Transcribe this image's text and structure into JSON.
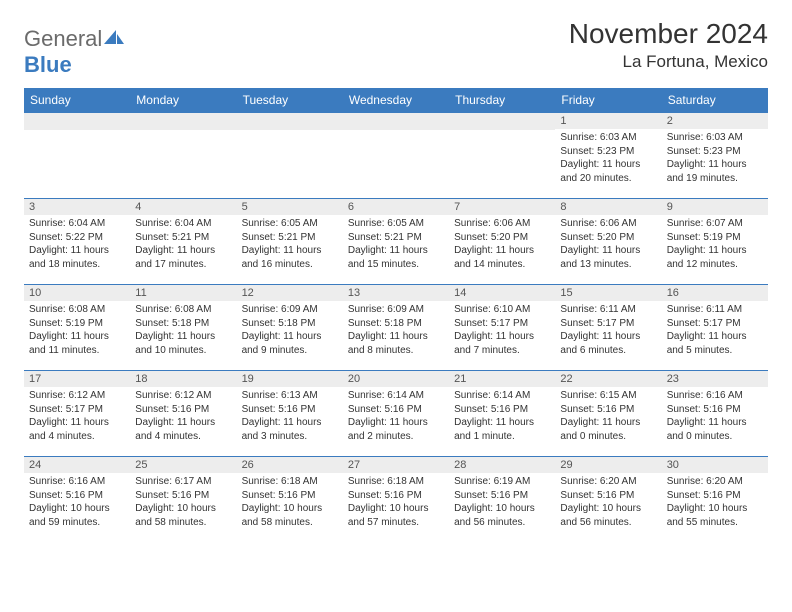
{
  "brand": {
    "part1": "General",
    "part2": "Blue"
  },
  "title": "November 2024",
  "location": "La Fortuna, Mexico",
  "colors": {
    "header_bg": "#3b7bbf",
    "header_text": "#ffffff",
    "daynum_bg": "#ededed",
    "text": "#333333",
    "logo_gray": "#6b6b6b",
    "logo_blue": "#3b7bbf"
  },
  "weekdays": [
    "Sunday",
    "Monday",
    "Tuesday",
    "Wednesday",
    "Thursday",
    "Friday",
    "Saturday"
  ],
  "weeks": [
    [
      null,
      null,
      null,
      null,
      null,
      {
        "n": "1",
        "sr": "Sunrise: 6:03 AM",
        "ss": "Sunset: 5:23 PM",
        "dl": "Daylight: 11 hours and 20 minutes."
      },
      {
        "n": "2",
        "sr": "Sunrise: 6:03 AM",
        "ss": "Sunset: 5:23 PM",
        "dl": "Daylight: 11 hours and 19 minutes."
      }
    ],
    [
      {
        "n": "3",
        "sr": "Sunrise: 6:04 AM",
        "ss": "Sunset: 5:22 PM",
        "dl": "Daylight: 11 hours and 18 minutes."
      },
      {
        "n": "4",
        "sr": "Sunrise: 6:04 AM",
        "ss": "Sunset: 5:21 PM",
        "dl": "Daylight: 11 hours and 17 minutes."
      },
      {
        "n": "5",
        "sr": "Sunrise: 6:05 AM",
        "ss": "Sunset: 5:21 PM",
        "dl": "Daylight: 11 hours and 16 minutes."
      },
      {
        "n": "6",
        "sr": "Sunrise: 6:05 AM",
        "ss": "Sunset: 5:21 PM",
        "dl": "Daylight: 11 hours and 15 minutes."
      },
      {
        "n": "7",
        "sr": "Sunrise: 6:06 AM",
        "ss": "Sunset: 5:20 PM",
        "dl": "Daylight: 11 hours and 14 minutes."
      },
      {
        "n": "8",
        "sr": "Sunrise: 6:06 AM",
        "ss": "Sunset: 5:20 PM",
        "dl": "Daylight: 11 hours and 13 minutes."
      },
      {
        "n": "9",
        "sr": "Sunrise: 6:07 AM",
        "ss": "Sunset: 5:19 PM",
        "dl": "Daylight: 11 hours and 12 minutes."
      }
    ],
    [
      {
        "n": "10",
        "sr": "Sunrise: 6:08 AM",
        "ss": "Sunset: 5:19 PM",
        "dl": "Daylight: 11 hours and 11 minutes."
      },
      {
        "n": "11",
        "sr": "Sunrise: 6:08 AM",
        "ss": "Sunset: 5:18 PM",
        "dl": "Daylight: 11 hours and 10 minutes."
      },
      {
        "n": "12",
        "sr": "Sunrise: 6:09 AM",
        "ss": "Sunset: 5:18 PM",
        "dl": "Daylight: 11 hours and 9 minutes."
      },
      {
        "n": "13",
        "sr": "Sunrise: 6:09 AM",
        "ss": "Sunset: 5:18 PM",
        "dl": "Daylight: 11 hours and 8 minutes."
      },
      {
        "n": "14",
        "sr": "Sunrise: 6:10 AM",
        "ss": "Sunset: 5:17 PM",
        "dl": "Daylight: 11 hours and 7 minutes."
      },
      {
        "n": "15",
        "sr": "Sunrise: 6:11 AM",
        "ss": "Sunset: 5:17 PM",
        "dl": "Daylight: 11 hours and 6 minutes."
      },
      {
        "n": "16",
        "sr": "Sunrise: 6:11 AM",
        "ss": "Sunset: 5:17 PM",
        "dl": "Daylight: 11 hours and 5 minutes."
      }
    ],
    [
      {
        "n": "17",
        "sr": "Sunrise: 6:12 AM",
        "ss": "Sunset: 5:17 PM",
        "dl": "Daylight: 11 hours and 4 minutes."
      },
      {
        "n": "18",
        "sr": "Sunrise: 6:12 AM",
        "ss": "Sunset: 5:16 PM",
        "dl": "Daylight: 11 hours and 4 minutes."
      },
      {
        "n": "19",
        "sr": "Sunrise: 6:13 AM",
        "ss": "Sunset: 5:16 PM",
        "dl": "Daylight: 11 hours and 3 minutes."
      },
      {
        "n": "20",
        "sr": "Sunrise: 6:14 AM",
        "ss": "Sunset: 5:16 PM",
        "dl": "Daylight: 11 hours and 2 minutes."
      },
      {
        "n": "21",
        "sr": "Sunrise: 6:14 AM",
        "ss": "Sunset: 5:16 PM",
        "dl": "Daylight: 11 hours and 1 minute."
      },
      {
        "n": "22",
        "sr": "Sunrise: 6:15 AM",
        "ss": "Sunset: 5:16 PM",
        "dl": "Daylight: 11 hours and 0 minutes."
      },
      {
        "n": "23",
        "sr": "Sunrise: 6:16 AM",
        "ss": "Sunset: 5:16 PM",
        "dl": "Daylight: 11 hours and 0 minutes."
      }
    ],
    [
      {
        "n": "24",
        "sr": "Sunrise: 6:16 AM",
        "ss": "Sunset: 5:16 PM",
        "dl": "Daylight: 10 hours and 59 minutes."
      },
      {
        "n": "25",
        "sr": "Sunrise: 6:17 AM",
        "ss": "Sunset: 5:16 PM",
        "dl": "Daylight: 10 hours and 58 minutes."
      },
      {
        "n": "26",
        "sr": "Sunrise: 6:18 AM",
        "ss": "Sunset: 5:16 PM",
        "dl": "Daylight: 10 hours and 58 minutes."
      },
      {
        "n": "27",
        "sr": "Sunrise: 6:18 AM",
        "ss": "Sunset: 5:16 PM",
        "dl": "Daylight: 10 hours and 57 minutes."
      },
      {
        "n": "28",
        "sr": "Sunrise: 6:19 AM",
        "ss": "Sunset: 5:16 PM",
        "dl": "Daylight: 10 hours and 56 minutes."
      },
      {
        "n": "29",
        "sr": "Sunrise: 6:20 AM",
        "ss": "Sunset: 5:16 PM",
        "dl": "Daylight: 10 hours and 56 minutes."
      },
      {
        "n": "30",
        "sr": "Sunrise: 6:20 AM",
        "ss": "Sunset: 5:16 PM",
        "dl": "Daylight: 10 hours and 55 minutes."
      }
    ]
  ]
}
